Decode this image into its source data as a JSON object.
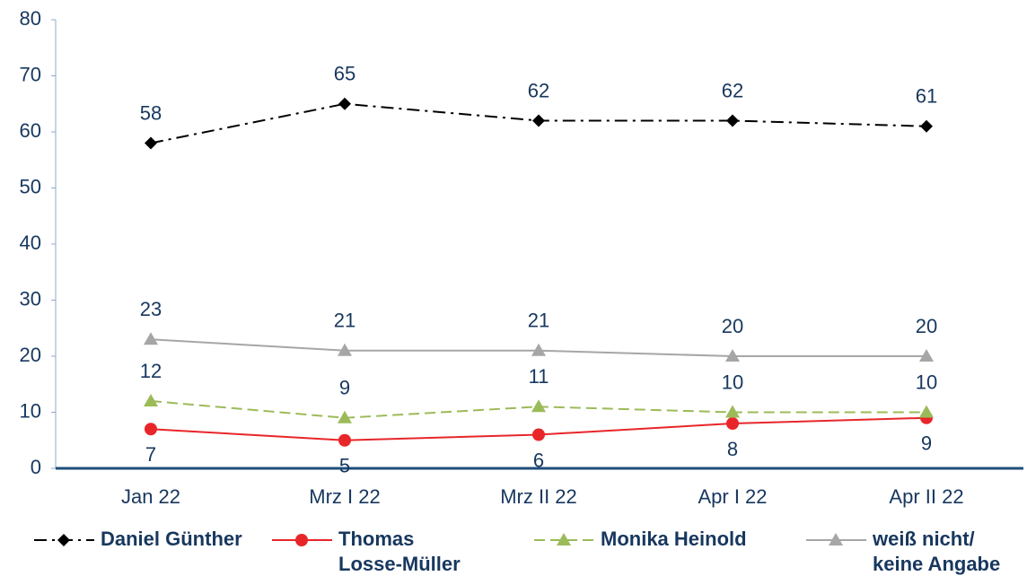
{
  "chart_data": {
    "type": "line",
    "categories": [
      "Jan 22",
      "Mrz I 22",
      "Mrz II 22",
      "Apr I 22",
      "Apr II 22"
    ],
    "series": [
      {
        "name": "Daniel Günther",
        "color": "#000000",
        "line_style": "dash-dot",
        "marker": "diamond",
        "label_position": "above",
        "values": [
          58,
          65,
          62,
          62,
          61
        ]
      },
      {
        "name": "Thomas\nLosse-Müller",
        "color": "#e8262a",
        "line_style": "solid",
        "marker": "circle",
        "label_position": "below",
        "values": [
          7,
          5,
          6,
          8,
          9
        ]
      },
      {
        "name": "Monika Heinold",
        "color": "#9bbb59",
        "line_style": "dashed",
        "marker": "triangle",
        "label_position": "above",
        "values": [
          12,
          9,
          11,
          10,
          10
        ]
      },
      {
        "name": "weiß nicht/\nkeine Angabe",
        "color": "#a6a6a6",
        "line_style": "solid",
        "marker": "triangle",
        "label_position": "above",
        "values": [
          23,
          21,
          21,
          20,
          20
        ]
      }
    ],
    "ylim": [
      0,
      80
    ],
    "yticks": [
      0,
      10,
      20,
      30,
      40,
      50,
      60,
      70,
      80
    ],
    "grid": false,
    "legend": "bottom"
  }
}
